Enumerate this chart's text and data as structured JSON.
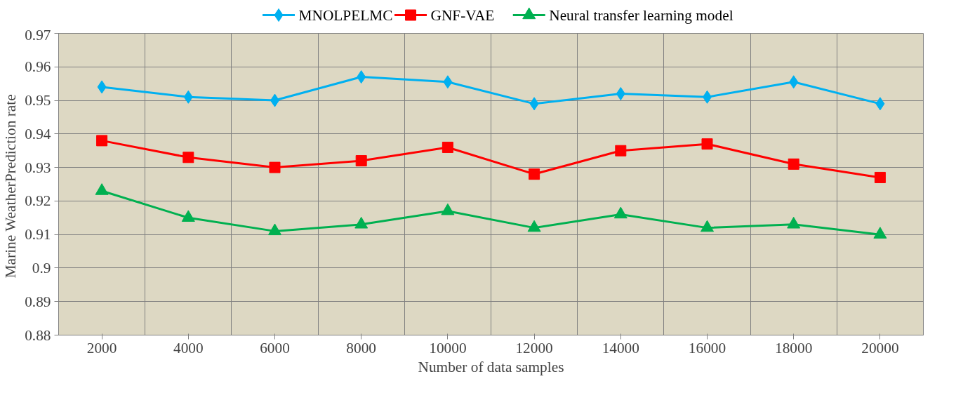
{
  "chart_data": {
    "type": "line",
    "xlabel": "Number of data samples",
    "ylabel": "Marine WeatherPrediction  rate",
    "categories": [
      "2000",
      "4000",
      "6000",
      "8000",
      "10000",
      "12000",
      "14000",
      "16000",
      "18000",
      "20000"
    ],
    "series": [
      {
        "name": "MNOLPELMC",
        "color": "#00b0f0",
        "marker": "diamond",
        "values": [
          0.954,
          0.951,
          0.95,
          0.957,
          0.9555,
          0.949,
          0.952,
          0.951,
          0.9555,
          0.949
        ]
      },
      {
        "name": "GNF-VAE",
        "color": "#ff0000",
        "marker": "square",
        "values": [
          0.938,
          0.933,
          0.93,
          0.932,
          0.936,
          0.928,
          0.935,
          0.937,
          0.931,
          0.927
        ]
      },
      {
        "name": "Neural transfer learning model",
        "color": "#00b050",
        "marker": "triangle",
        "values": [
          0.923,
          0.915,
          0.911,
          0.913,
          0.917,
          0.912,
          0.916,
          0.912,
          0.913,
          0.91
        ]
      }
    ],
    "ylim": [
      0.88,
      0.97
    ],
    "yticks": [
      0.88,
      0.89,
      0.9,
      0.91,
      0.92,
      0.93,
      0.94,
      0.95,
      0.96,
      0.97
    ],
    "grid": true,
    "legend": "top",
    "line_style": "solid"
  }
}
